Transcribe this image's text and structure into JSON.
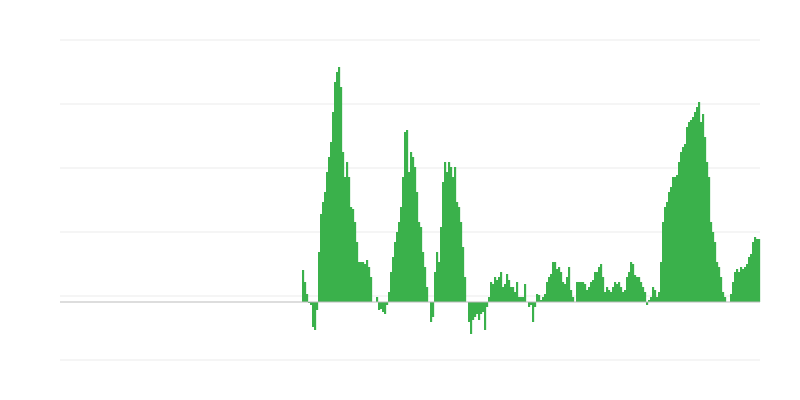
{
  "chart_data": {
    "type": "bar",
    "title": "",
    "xlabel": "",
    "ylabel": "",
    "ylim": [
      -58,
      262
    ],
    "grid": true,
    "grid_count": 5,
    "colors": {
      "bar": "#3ab14b",
      "grid": "#ebebeb",
      "baseline": "#bbbbbb"
    },
    "values": [
      null,
      null,
      null,
      null,
      null,
      null,
      null,
      null,
      null,
      null,
      null,
      null,
      null,
      null,
      null,
      null,
      null,
      null,
      null,
      null,
      null,
      null,
      null,
      null,
      null,
      null,
      null,
      null,
      null,
      null,
      null,
      null,
      null,
      null,
      null,
      null,
      null,
      null,
      null,
      null,
      null,
      null,
      null,
      null,
      null,
      null,
      null,
      null,
      null,
      null,
      null,
      null,
      null,
      null,
      null,
      null,
      null,
      null,
      null,
      null,
      null,
      null,
      null,
      null,
      null,
      null,
      null,
      null,
      null,
      null,
      null,
      null,
      null,
      null,
      null,
      null,
      null,
      null,
      null,
      null,
      null,
      null,
      null,
      null,
      null,
      null,
      null,
      null,
      null,
      null,
      null,
      null,
      null,
      null,
      null,
      null,
      null,
      null,
      null,
      null,
      null,
      null,
      null,
      null,
      null,
      null,
      null,
      null,
      null,
      null,
      null,
      null,
      null,
      null,
      null,
      null,
      null,
      null,
      null,
      null,
      null,
      32,
      20,
      8,
      -1,
      -3,
      -25,
      -28,
      -8,
      50,
      88,
      100,
      110,
      130,
      145,
      160,
      190,
      220,
      230,
      235,
      215,
      150,
      125,
      140,
      125,
      95,
      93,
      80,
      60,
      40,
      40,
      40,
      38,
      42,
      35,
      25,
      0,
      0,
      5,
      -8,
      -7,
      -10,
      -12,
      -3,
      10,
      30,
      45,
      60,
      70,
      80,
      95,
      125,
      170,
      172,
      130,
      150,
      145,
      135,
      110,
      80,
      75,
      50,
      35,
      15,
      0,
      -20,
      -15,
      30,
      50,
      40,
      75,
      120,
      140,
      130,
      140,
      135,
      125,
      135,
      100,
      95,
      80,
      55,
      25,
      0,
      -20,
      -32,
      -18,
      -15,
      -12,
      -18,
      -12,
      -10,
      -28,
      -5,
      5,
      20,
      18,
      25,
      22,
      25,
      30,
      15,
      18,
      28,
      22,
      15,
      15,
      10,
      20,
      5,
      5,
      5,
      18,
      0,
      -5,
      -3,
      -20,
      -5,
      8,
      7,
      2,
      5,
      8,
      20,
      25,
      28,
      40,
      40,
      33,
      35,
      30,
      20,
      18,
      25,
      35,
      12,
      5,
      0,
      20,
      20,
      20,
      20,
      18,
      12,
      15,
      20,
      22,
      30,
      30,
      35,
      38,
      25,
      10,
      15,
      12,
      10,
      15,
      20,
      18,
      20,
      15,
      10,
      12,
      25,
      30,
      40,
      38,
      27,
      25,
      25,
      20,
      15,
      10,
      -3,
      2,
      5,
      15,
      12,
      5,
      10,
      40,
      80,
      95,
      100,
      110,
      115,
      125,
      125,
      127,
      140,
      150,
      155,
      158,
      175,
      180,
      182,
      185,
      190,
      195,
      200,
      180,
      188,
      165,
      140,
      125,
      80,
      70,
      60,
      40,
      35,
      25,
      10,
      5,
      0,
      0,
      8,
      20,
      30,
      33,
      30,
      35,
      33,
      35,
      38,
      45,
      48,
      60,
      65,
      63,
      63
    ]
  }
}
